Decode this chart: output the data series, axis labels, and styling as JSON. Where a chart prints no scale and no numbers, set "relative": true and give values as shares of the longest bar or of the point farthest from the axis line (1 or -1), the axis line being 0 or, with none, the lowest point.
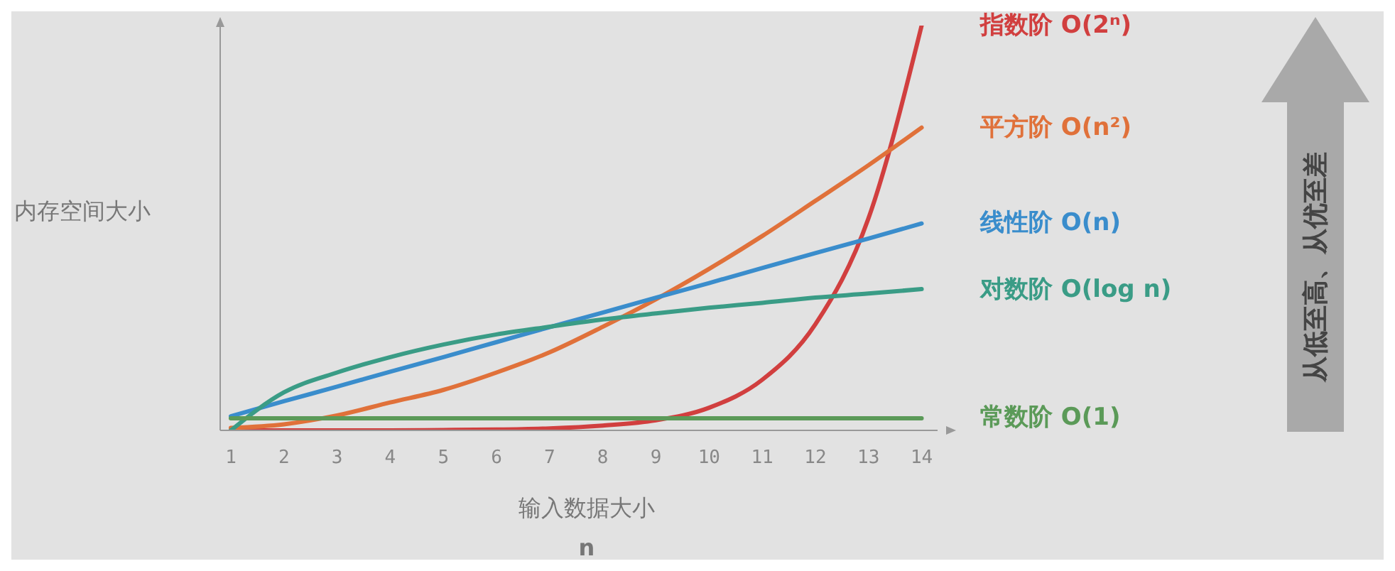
{
  "chart_data": {
    "type": "line",
    "relative": true,
    "ylabel": "内存空间大小",
    "xlabel": "输入数据大小\nn",
    "x": [
      1,
      2,
      3,
      4,
      5,
      6,
      7,
      8,
      9,
      10,
      11,
      12,
      13,
      14
    ],
    "xlim": [
      0.8,
      14.3
    ],
    "xticks": [
      1,
      2,
      3,
      4,
      5,
      6,
      7,
      8,
      9,
      10,
      11,
      12,
      13,
      14
    ],
    "legend": "right",
    "annotations": [
      "从低至高、从优至差"
    ],
    "series": [
      {
        "name": "指数阶 O(2ⁿ)",
        "color": "#d13f3f",
        "values": [
          0,
          0,
          0,
          0,
          0.001,
          0.002,
          0.005,
          0.012,
          0.025,
          0.056,
          0.125,
          0.262,
          0.524,
          1
        ]
      },
      {
        "name": "平方阶 O(n²)",
        "color": "#e0713a",
        "values": [
          0.006,
          0.015,
          0.037,
          0.069,
          0.1,
          0.143,
          0.193,
          0.256,
          0.324,
          0.399,
          0.48,
          0.567,
          0.655,
          0.748
        ]
      },
      {
        "name": "线性阶 O(n)",
        "color": "#3a8dcc",
        "values": [
          0.035,
          0.072,
          0.108,
          0.145,
          0.181,
          0.218,
          0.255,
          0.291,
          0.328,
          0.364,
          0.401,
          0.438,
          0.474,
          0.511
        ]
      },
      {
        "name": "对数阶 O(log n)",
        "color": "#3a9c86",
        "values": [
          0,
          0.094,
          0.143,
          0.181,
          0.212,
          0.237,
          0.256,
          0.274,
          0.289,
          0.303,
          0.315,
          0.328,
          0.338,
          0.349
        ]
      },
      {
        "name": "常数阶 O(1)",
        "color": "#5b9a58",
        "values": [
          0.03,
          0.03,
          0.03,
          0.03,
          0.03,
          0.03,
          0.03,
          0.03,
          0.03,
          0.03,
          0.03,
          0.03,
          0.03,
          0.03
        ]
      }
    ]
  }
}
